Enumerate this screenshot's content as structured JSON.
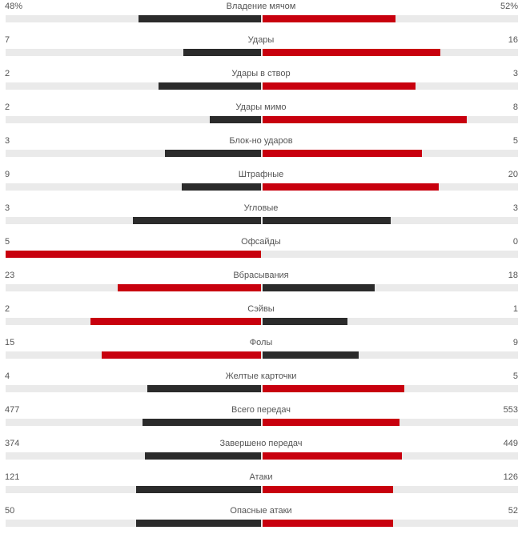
{
  "colors": {
    "dark": "#2b2b2b",
    "red": "#c8000e",
    "track": "#eaeaea"
  },
  "stats": [
    {
      "name": "Владение мячом",
      "home": "48%",
      "away": "52%",
      "home_share": 0.48,
      "away_share": 0.52,
      "home_color": "dark",
      "away_color": "red"
    },
    {
      "name": "Удары",
      "home": "7",
      "away": "16",
      "home_share": 0.3043,
      "away_share": 0.6957,
      "home_color": "dark",
      "away_color": "red"
    },
    {
      "name": "Удары в створ",
      "home": "2",
      "away": "3",
      "home_share": 0.4,
      "away_share": 0.6,
      "home_color": "dark",
      "away_color": "red"
    },
    {
      "name": "Удары мимо",
      "home": "2",
      "away": "8",
      "home_share": 0.2,
      "away_share": 0.8,
      "home_color": "dark",
      "away_color": "red"
    },
    {
      "name": "Блок-но ударов",
      "home": "3",
      "away": "5",
      "home_share": 0.375,
      "away_share": 0.625,
      "home_color": "dark",
      "away_color": "red"
    },
    {
      "name": "Штрафные",
      "home": "9",
      "away": "20",
      "home_share": 0.3103,
      "away_share": 0.6897,
      "home_color": "dark",
      "away_color": "red"
    },
    {
      "name": "Угловые",
      "home": "3",
      "away": "3",
      "home_share": 0.5,
      "away_share": 0.5,
      "home_color": "dark",
      "away_color": "dark"
    },
    {
      "name": "Офсайды",
      "home": "5",
      "away": "0",
      "home_share": 1.0,
      "away_share": 0.0,
      "home_color": "red",
      "away_color": "dark"
    },
    {
      "name": "Вбрасывания",
      "home": "23",
      "away": "18",
      "home_share": 0.561,
      "away_share": 0.439,
      "home_color": "red",
      "away_color": "dark"
    },
    {
      "name": "Сэйвы",
      "home": "2",
      "away": "1",
      "home_share": 0.6667,
      "away_share": 0.3333,
      "home_color": "red",
      "away_color": "dark"
    },
    {
      "name": "Фолы",
      "home": "15",
      "away": "9",
      "home_share": 0.625,
      "away_share": 0.375,
      "home_color": "red",
      "away_color": "dark"
    },
    {
      "name": "Желтые карточки",
      "home": "4",
      "away": "5",
      "home_share": 0.4444,
      "away_share": 0.5556,
      "home_color": "dark",
      "away_color": "red"
    },
    {
      "name": "Всего передач",
      "home": "477",
      "away": "553",
      "home_share": 0.4631,
      "away_share": 0.5369,
      "home_color": "dark",
      "away_color": "red"
    },
    {
      "name": "Завершено передач",
      "home": "374",
      "away": "449",
      "home_share": 0.4544,
      "away_share": 0.5456,
      "home_color": "dark",
      "away_color": "red"
    },
    {
      "name": "Атаки",
      "home": "121",
      "away": "126",
      "home_share": 0.4899,
      "away_share": 0.5101,
      "home_color": "dark",
      "away_color": "red"
    },
    {
      "name": "Опасные атаки",
      "home": "50",
      "away": "52",
      "home_share": 0.4902,
      "away_share": 0.5098,
      "home_color": "dark",
      "away_color": "red"
    }
  ]
}
